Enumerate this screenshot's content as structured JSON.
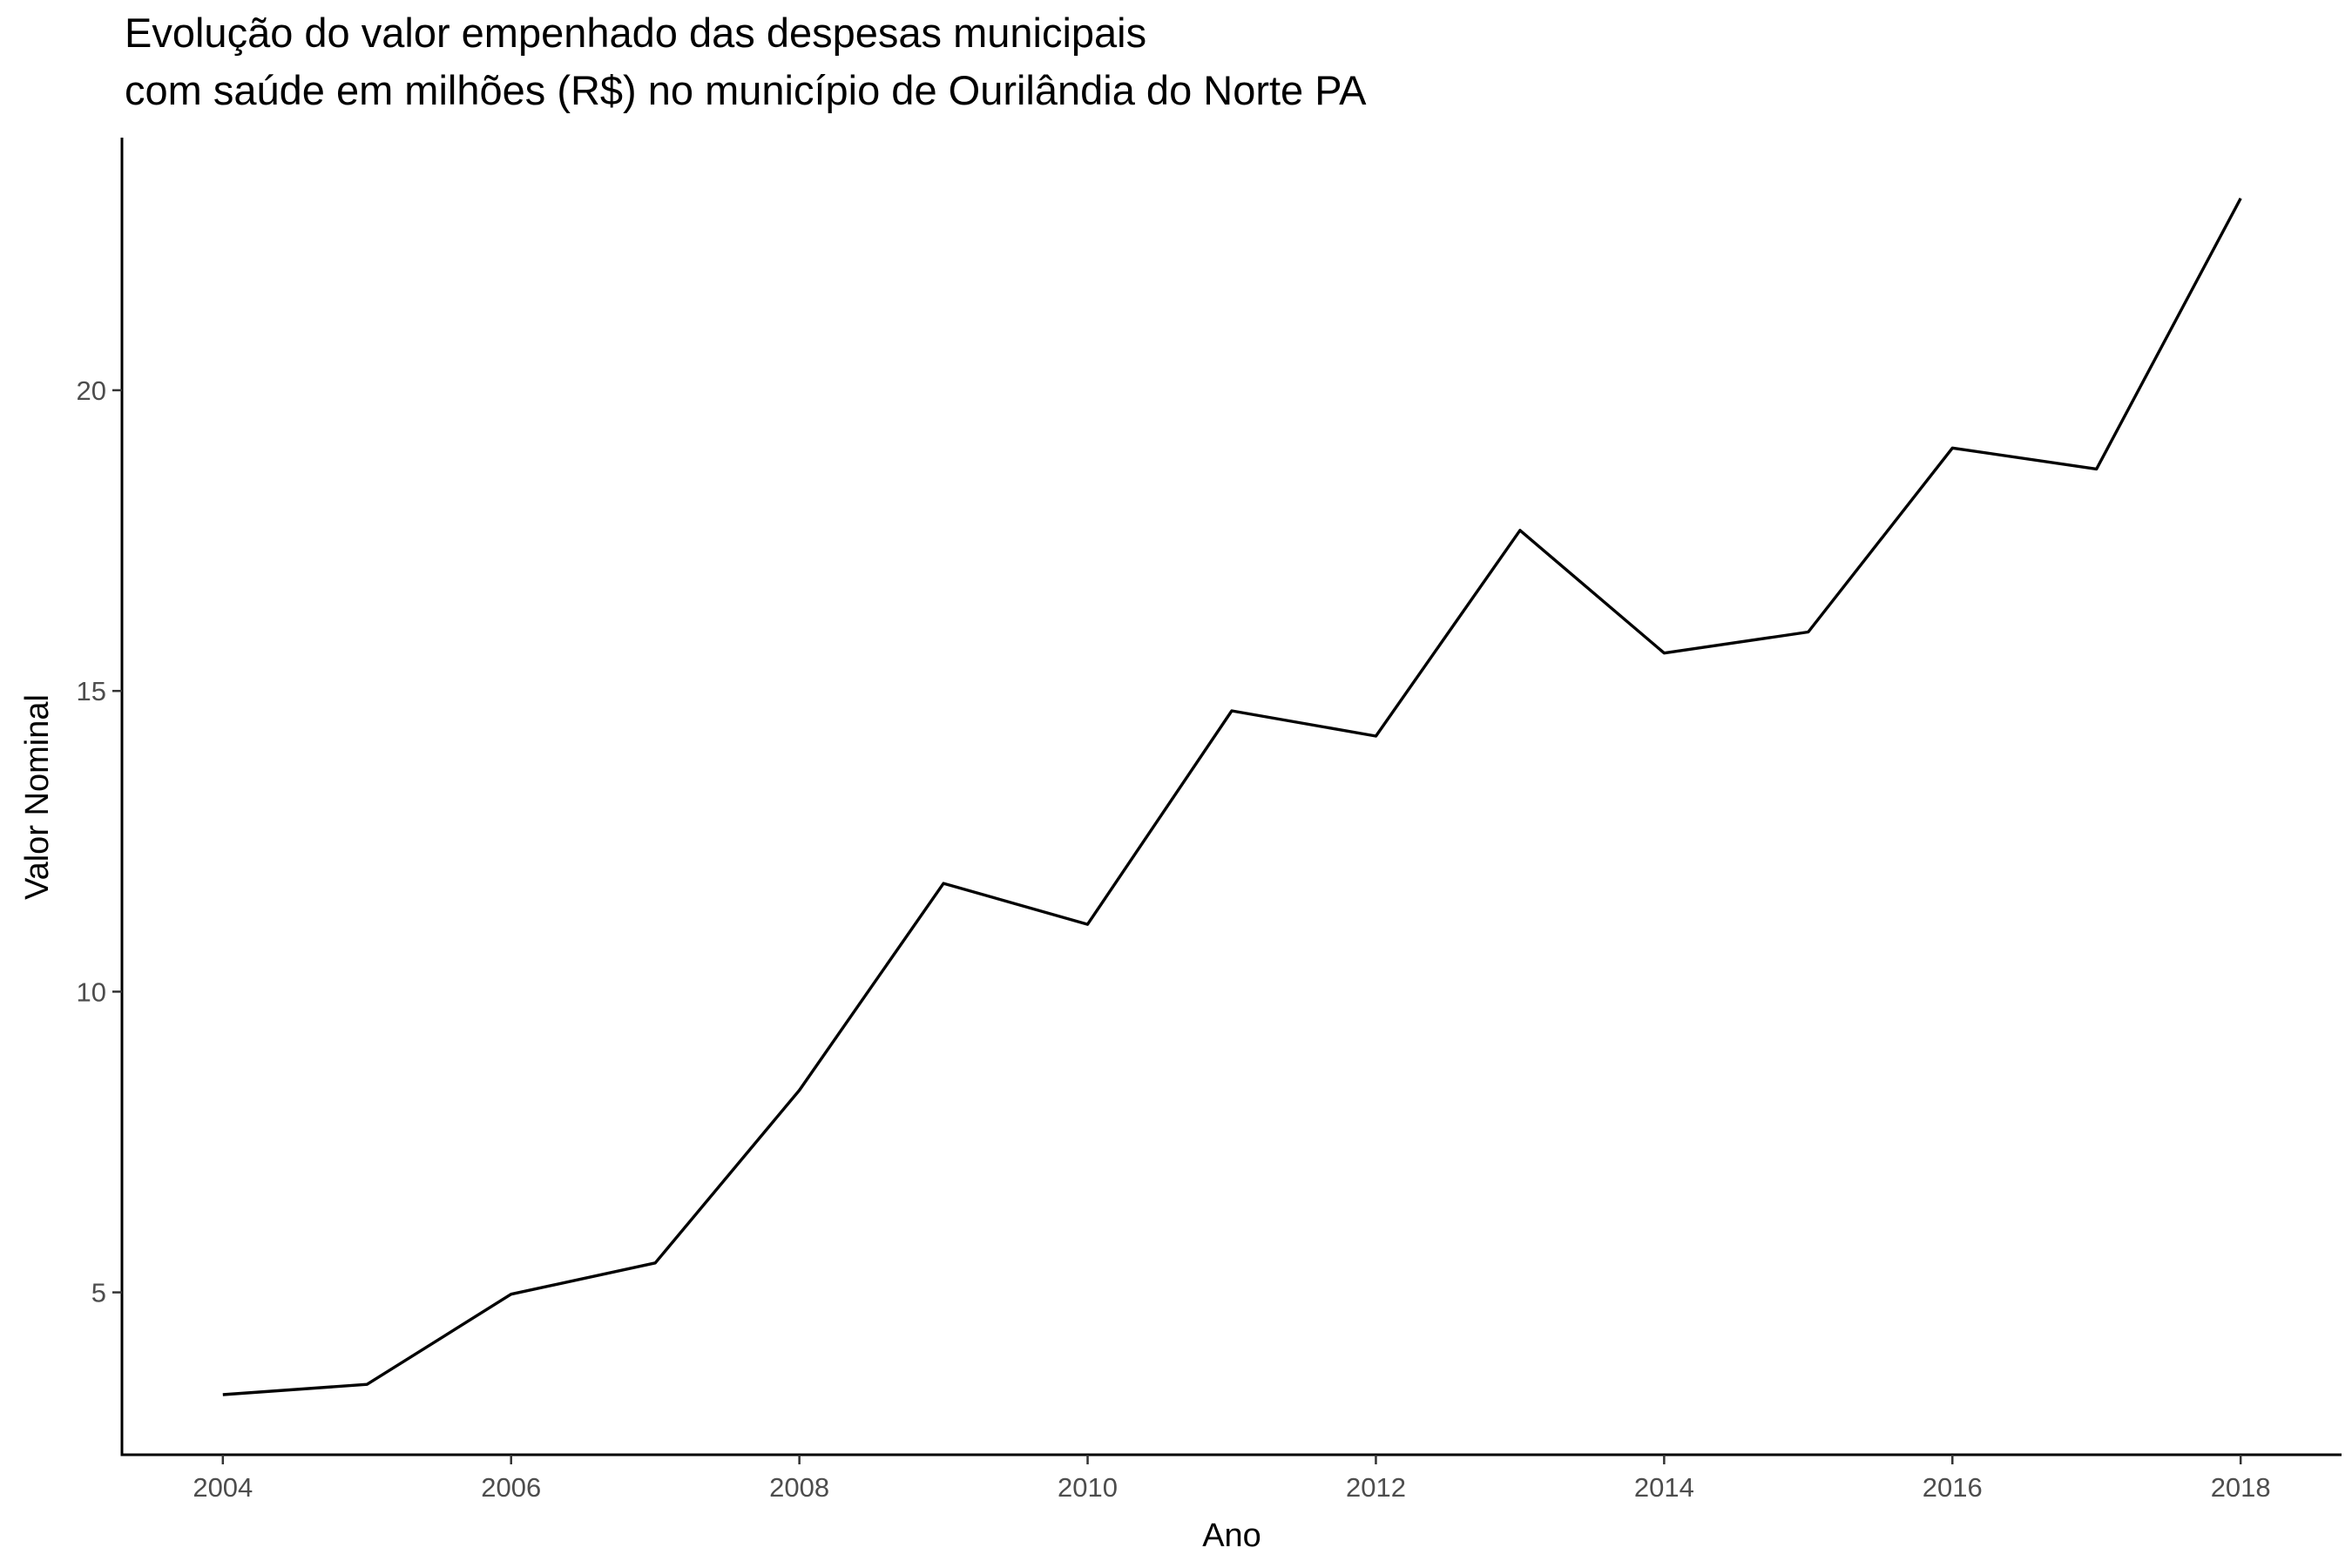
{
  "chart_data": {
    "type": "line",
    "title_lines": [
      "Evolução do valor empenhado das despesas municipais",
      "com saúde em milhões (R$) no município de Ourilândia do Norte PA"
    ],
    "xlabel": "Ano",
    "ylabel": "Valor Nominal",
    "x": [
      2004,
      2005,
      2006,
      2007,
      2008,
      2009,
      2010,
      2011,
      2012,
      2013,
      2014,
      2015,
      2016,
      2017,
      2018
    ],
    "values": [
      3.3,
      3.47,
      4.97,
      5.49,
      8.36,
      11.8,
      11.12,
      14.67,
      14.25,
      17.67,
      15.63,
      15.98,
      19.04,
      18.69,
      23.19
    ],
    "x_ticks": [
      2004,
      2006,
      2008,
      2010,
      2012,
      2014,
      2016,
      2018
    ],
    "y_ticks": [
      5,
      10,
      15,
      20
    ],
    "xlim": [
      2003.3,
      2018.7
    ],
    "ylim": [
      2.3,
      24.2
    ],
    "grid": false,
    "legend": "none",
    "line_color": "#000000"
  }
}
